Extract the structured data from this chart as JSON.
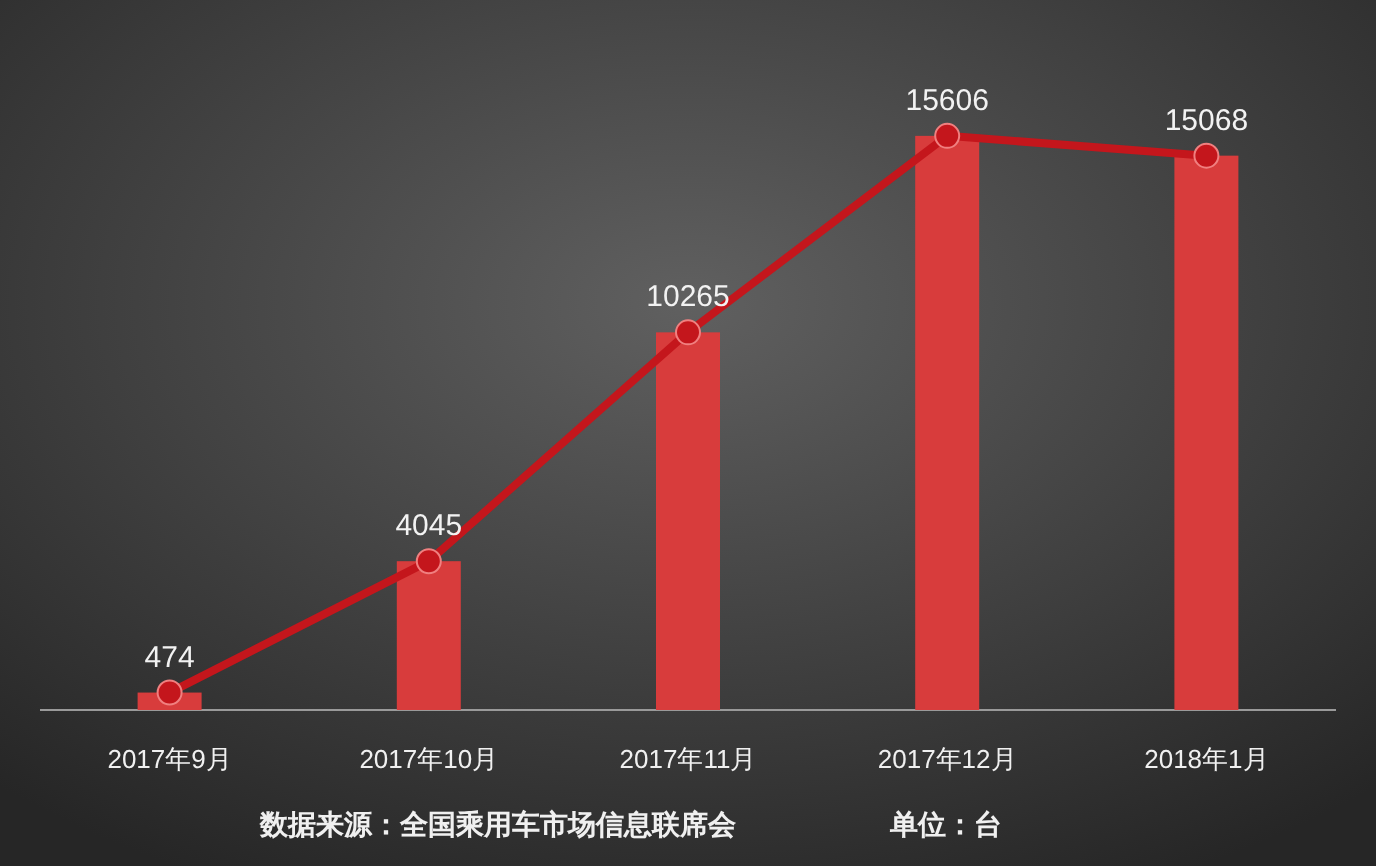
{
  "chart_data": {
    "type": "bar",
    "categories": [
      "2017年9月",
      "2017年10月",
      "2017年11月",
      "2017年12月",
      "2018年1月"
    ],
    "series": [
      {
        "color": "#d83c3c",
        "values": [
          474,
          4045,
          10265,
          15606,
          15068
        ]
      },
      {
        "type": "line",
        "color": "#c4161c",
        "values": [
          474,
          4045,
          10265,
          15606,
          15068
        ],
        "value_labels": [
          "474",
          "4045",
          "10265",
          "15606",
          "15068"
        ]
      }
    ],
    "marker": "circle",
    "line_style": "solid",
    "annotations": [
      "数据来源：全国乘用车市场信息联席会",
      "单位：台"
    ]
  }
}
